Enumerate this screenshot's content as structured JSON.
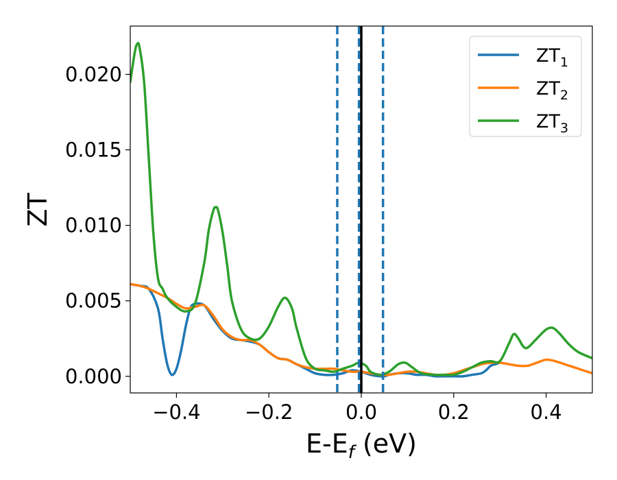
{
  "chart_data": {
    "type": "line",
    "xlabel": "E-E",
    "xlabel_sub": "f",
    "xlabel_unit": " (eV)",
    "ylabel": "ZT",
    "xlim": [
      -0.5,
      0.5
    ],
    "ylim": [
      -0.0011,
      0.0232
    ],
    "xticks": [
      -0.4,
      -0.2,
      0.0,
      0.2,
      0.4
    ],
    "xtick_labels": [
      "−0.4",
      "−0.2",
      "0.0",
      "0.2",
      "0.4"
    ],
    "yticks": [
      0.0,
      0.005,
      0.01,
      0.015,
      0.02
    ],
    "ytick_labels": [
      "0.000",
      "0.005",
      "0.010",
      "0.015",
      "0.020"
    ],
    "grid": false,
    "legend_position": "top-right",
    "vlines": [
      {
        "x": -0.052,
        "style": "dashed",
        "color": "#1f77b4"
      },
      {
        "x": -0.005,
        "style": "dashed",
        "color": "#1f77b4"
      },
      {
        "x": 0.0,
        "style": "solid",
        "color": "#000000"
      },
      {
        "x": 0.047,
        "style": "dashed",
        "color": "#1f77b4"
      }
    ],
    "series": [
      {
        "name": "ZT",
        "sub": "1",
        "color": "#1f77b4",
        "x": [
          -0.5,
          -0.48,
          -0.46,
          -0.44,
          -0.43,
          -0.42,
          -0.41,
          -0.4,
          -0.39,
          -0.38,
          -0.37,
          -0.36,
          -0.34,
          -0.32,
          -0.3,
          -0.28,
          -0.26,
          -0.24,
          -0.22,
          -0.2,
          -0.18,
          -0.16,
          -0.14,
          -0.12,
          -0.1,
          -0.08,
          -0.06,
          -0.04,
          -0.02,
          0.0,
          0.02,
          0.04,
          0.05,
          0.06,
          0.08,
          0.1,
          0.12,
          0.14,
          0.16,
          0.18,
          0.2,
          0.22,
          0.24,
          0.26,
          0.27,
          0.28,
          0.29,
          0.3
        ],
        "y": [
          0.0061,
          0.006,
          0.0058,
          0.0045,
          0.0025,
          0.0008,
          0.0001,
          0.0005,
          0.0017,
          0.0033,
          0.0045,
          0.0048,
          0.0047,
          0.0038,
          0.003,
          0.0025,
          0.0024,
          0.0023,
          0.0021,
          0.0016,
          0.0012,
          0.0011,
          0.0008,
          0.0005,
          0.0002,
          0.0001,
          0.0001,
          0.0002,
          0.0004,
          0.0003,
          0.0001,
          0.0,
          0.0,
          0.0001,
          0.0002,
          0.0002,
          0.0001,
          0.0001,
          0.0,
          0.0,
          0.0,
          0.0,
          0.0001,
          0.0002,
          0.0004,
          0.0007,
          0.0008,
          0.0009
        ]
      },
      {
        "name": "ZT",
        "sub": "2",
        "color": "#ff7f0e",
        "x": [
          -0.5,
          -0.48,
          -0.46,
          -0.44,
          -0.42,
          -0.4,
          -0.38,
          -0.36,
          -0.34,
          -0.32,
          -0.3,
          -0.28,
          -0.26,
          -0.24,
          -0.22,
          -0.2,
          -0.18,
          -0.16,
          -0.14,
          -0.12,
          -0.1,
          -0.08,
          -0.06,
          -0.04,
          -0.02,
          0.0,
          0.02,
          0.04,
          0.06,
          0.08,
          0.1,
          0.12,
          0.14,
          0.16,
          0.18,
          0.2,
          0.22,
          0.24,
          0.26,
          0.28,
          0.3,
          0.32,
          0.34,
          0.36,
          0.38,
          0.4,
          0.42,
          0.44,
          0.46,
          0.48,
          0.5
        ],
        "y": [
          0.0061,
          0.006,
          0.0058,
          0.0055,
          0.0052,
          0.0048,
          0.0045,
          0.0046,
          0.0047,
          0.004,
          0.0031,
          0.0026,
          0.0024,
          0.0024,
          0.0021,
          0.0016,
          0.0012,
          0.0011,
          0.0008,
          0.0006,
          0.0005,
          0.0005,
          0.0005,
          0.0004,
          0.0003,
          0.0003,
          0.0002,
          0.0001,
          0.0001,
          0.0002,
          0.0003,
          0.0003,
          0.0002,
          0.0001,
          0.0001,
          0.0002,
          0.0004,
          0.0006,
          0.0008,
          0.0009,
          0.0009,
          0.0008,
          0.0007,
          0.0007,
          0.0009,
          0.0011,
          0.001,
          0.0008,
          0.0006,
          0.0004,
          0.0002
        ]
      },
      {
        "name": "ZT",
        "sub": "3",
        "color": "#2ca02c",
        "x": [
          -0.5,
          -0.49,
          -0.485,
          -0.48,
          -0.47,
          -0.46,
          -0.45,
          -0.44,
          -0.43,
          -0.42,
          -0.4,
          -0.38,
          -0.36,
          -0.34,
          -0.33,
          -0.32,
          -0.315,
          -0.31,
          -0.3,
          -0.29,
          -0.28,
          -0.26,
          -0.24,
          -0.22,
          -0.2,
          -0.18,
          -0.165,
          -0.15,
          -0.14,
          -0.12,
          -0.1,
          -0.08,
          -0.06,
          -0.04,
          -0.02,
          -0.005,
          0.01,
          0.02,
          0.04,
          0.06,
          0.08,
          0.095,
          0.11,
          0.13,
          0.16,
          0.18,
          0.2,
          0.22,
          0.24,
          0.26,
          0.28,
          0.3,
          0.32,
          0.33,
          0.34,
          0.35,
          0.36,
          0.38,
          0.4,
          0.415,
          0.43,
          0.45,
          0.47,
          0.5
        ],
        "y": [
          0.0195,
          0.0215,
          0.022,
          0.0218,
          0.0195,
          0.0145,
          0.0095,
          0.0065,
          0.0058,
          0.0052,
          0.0046,
          0.0043,
          0.0048,
          0.0075,
          0.0097,
          0.011,
          0.0112,
          0.011,
          0.0095,
          0.0073,
          0.005,
          0.0031,
          0.0025,
          0.0025,
          0.0033,
          0.0046,
          0.0052,
          0.0045,
          0.0032,
          0.0012,
          0.0005,
          0.0004,
          0.0003,
          0.0005,
          0.0007,
          0.0009,
          0.0007,
          0.0003,
          0.0001,
          0.0003,
          0.0008,
          0.0009,
          0.0006,
          0.0002,
          0.0001,
          0.0001,
          0.0001,
          0.0003,
          0.0006,
          0.0009,
          0.001,
          0.001,
          0.0022,
          0.0028,
          0.0025,
          0.002,
          0.0019,
          0.0025,
          0.0031,
          0.0032,
          0.0028,
          0.0021,
          0.0016,
          0.0012
        ]
      }
    ]
  }
}
